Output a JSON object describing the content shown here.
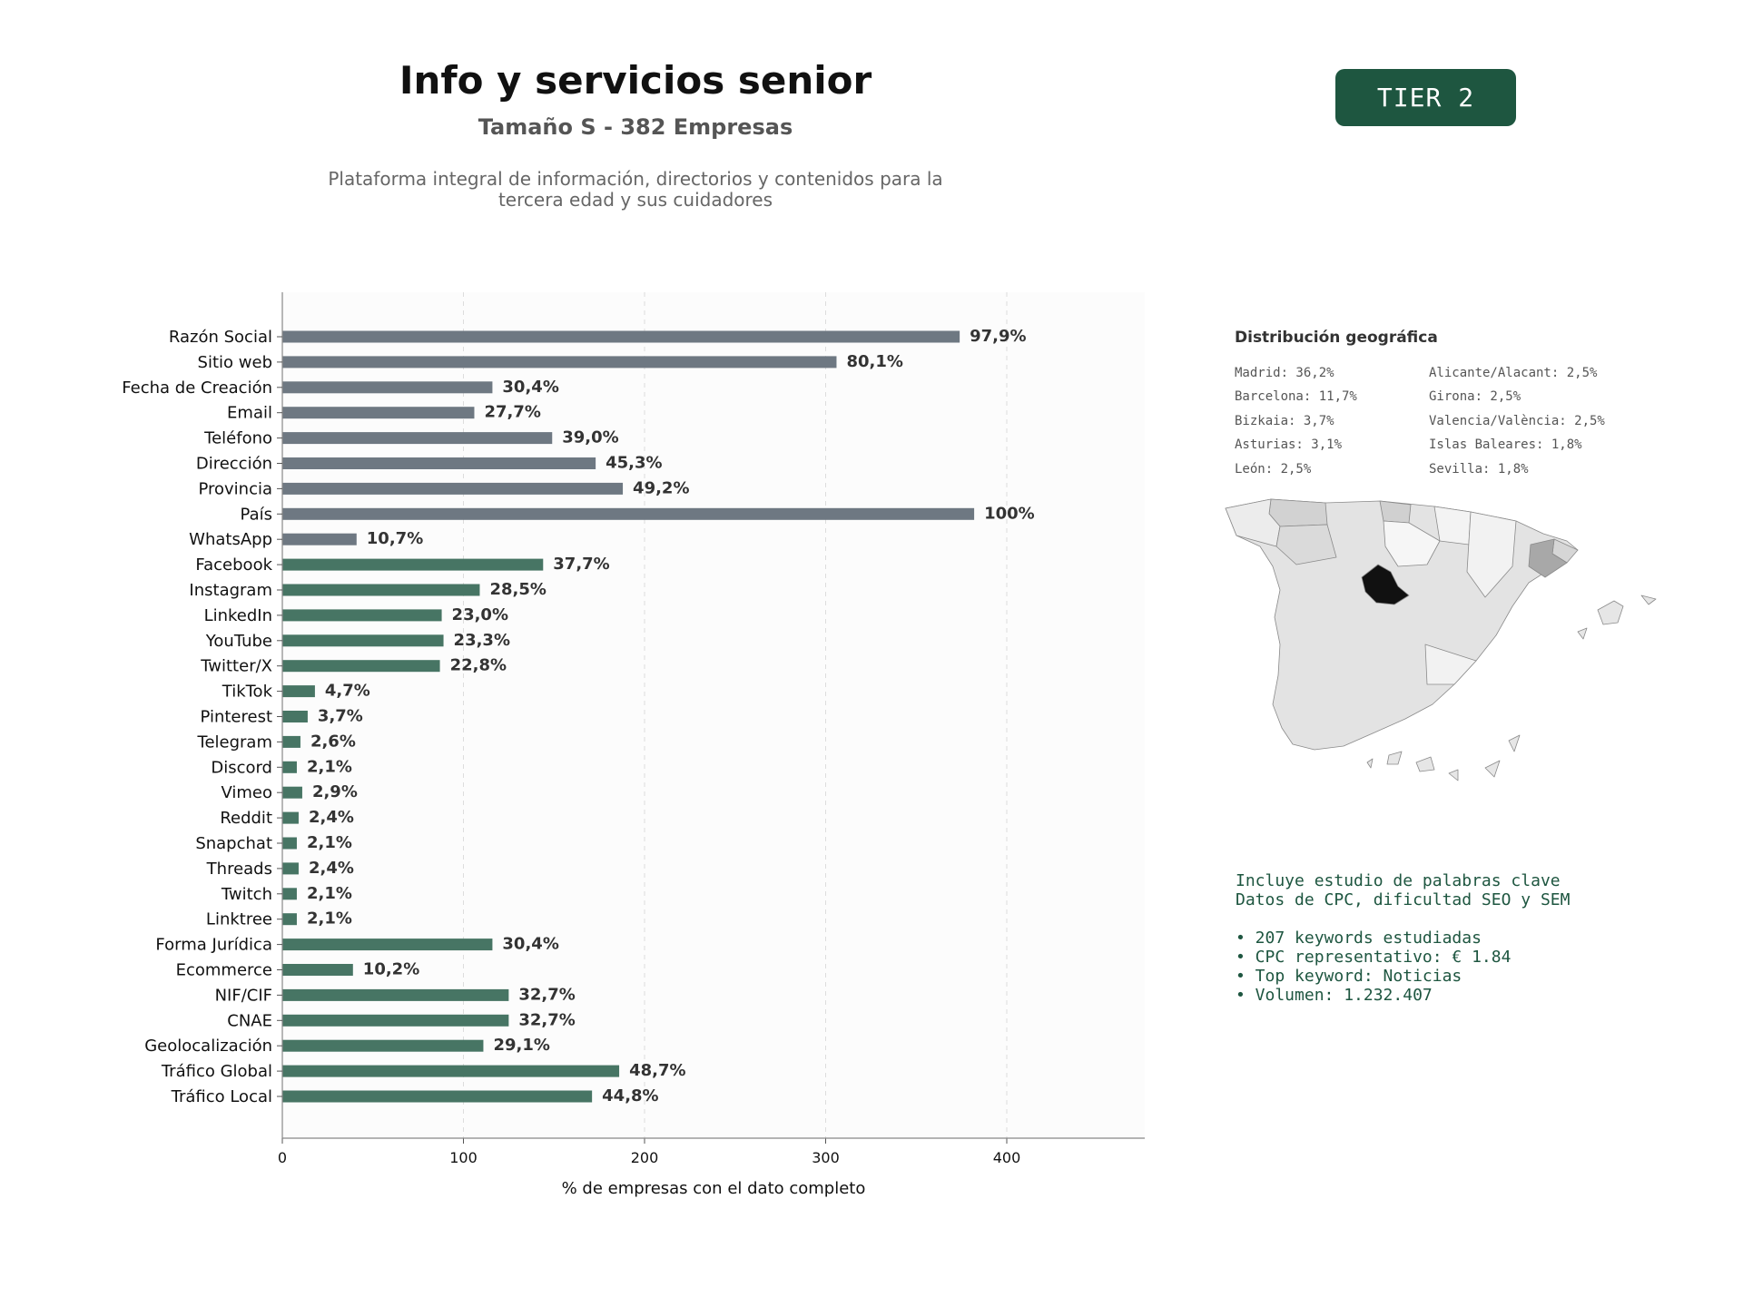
{
  "header": {
    "title": "Info y servicios senior",
    "subtitle": "Tamaño S - 382 Empresas",
    "description_line1": "Plataforma integral de información, directorios y contenidos para la",
    "description_line2": "tercera edad y sus cuidadores",
    "tier_badge": "TIER 2"
  },
  "colors": {
    "gray_bar": "#6e7882",
    "green_bar": "#477564",
    "accent": "#1e5640"
  },
  "chart_data": {
    "type": "bar",
    "orientation": "horizontal",
    "categories": [
      "Razón Social",
      "Sitio web",
      "Fecha de Creación",
      "Email",
      "Teléfono",
      "Dirección",
      "Provincia",
      "País",
      "WhatsApp",
      "Facebook",
      "Instagram",
      "LinkedIn",
      "YouTube",
      "Twitter/X",
      "TikTok",
      "Pinterest",
      "Telegram",
      "Discord",
      "Vimeo",
      "Reddit",
      "Snapchat",
      "Threads",
      "Twitch",
      "Linktree",
      "Forma Jurídica",
      "Ecommerce",
      "NIF/CIF",
      "CNAE",
      "Geolocalización",
      "Tráfico Global",
      "Tráfico Local"
    ],
    "values": [
      374,
      306,
      116,
      106,
      149,
      173,
      188,
      382,
      41,
      144,
      109,
      88,
      89,
      87,
      18,
      14,
      10,
      8,
      11,
      9,
      8,
      9,
      8,
      8,
      116,
      39,
      125,
      125,
      111,
      186,
      171
    ],
    "labels": [
      "97,9%",
      "80,1%",
      "30,4%",
      "27,7%",
      "39,0%",
      "45,3%",
      "49,2%",
      "100%",
      "10,7%",
      "37,7%",
      "28,5%",
      "23,0%",
      "23,3%",
      "22,8%",
      "4,7%",
      "3,7%",
      "2,6%",
      "2,1%",
      "2,9%",
      "2,4%",
      "2,1%",
      "2,4%",
      "2,1%",
      "2,1%",
      "30,4%",
      "10,2%",
      "32,7%",
      "32,7%",
      "29,1%",
      "48,7%",
      "44,8%"
    ],
    "groups": [
      "gray",
      "gray",
      "gray",
      "gray",
      "gray",
      "gray",
      "gray",
      "gray",
      "gray",
      "green",
      "green",
      "green",
      "green",
      "green",
      "green",
      "green",
      "green",
      "green",
      "green",
      "green",
      "green",
      "green",
      "green",
      "green",
      "green",
      "green",
      "green",
      "green",
      "green",
      "green",
      "green"
    ],
    "xlabel": "% de empresas con el dato completo",
    "xlim": [
      0,
      477
    ],
    "xticks": [
      0,
      100,
      200,
      300,
      400
    ],
    "grid": "vertical dashed"
  },
  "geo": {
    "title": "Distribución geográfica",
    "items": [
      "Madrid: 36,2%",
      "Alicante/Alacant: 2,5%",
      "Barcelona: 11,7%",
      "Girona: 2,5%",
      "Bizkaia: 3,7%",
      "Valencia/València: 2,5%",
      "Asturias: 3,1%",
      "Islas Baleares: 1,8%",
      "León: 2,5%",
      "Sevilla: 1,8%"
    ]
  },
  "keywords": {
    "line1": "Incluye estudio de palabras clave",
    "line2": "Datos de CPC, dificultad SEO y SEM",
    "bullet1": "• 207 keywords estudiadas",
    "bullet2": "• CPC representativo: € 1.84",
    "bullet3": "• Top keyword: Noticias",
    "bullet4": "• Volumen: 1.232.407"
  }
}
